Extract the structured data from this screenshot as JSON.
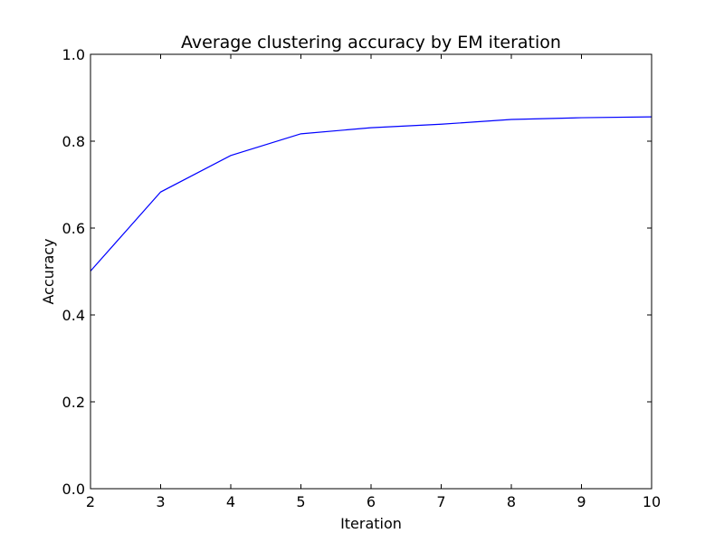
{
  "chart_data": {
    "type": "line",
    "title": "Average clustering accuracy by EM iteration",
    "xlabel": "Iteration",
    "ylabel": "Accuracy",
    "xlim": [
      2,
      10
    ],
    "ylim": [
      0.0,
      1.0
    ],
    "x_ticks": [
      "2",
      "3",
      "4",
      "5",
      "6",
      "7",
      "8",
      "9",
      "10"
    ],
    "y_ticks": [
      "0.0",
      "0.2",
      "0.4",
      "0.6",
      "0.8",
      "1.0"
    ],
    "grid": false,
    "legend": "none",
    "series": [
      {
        "color": "#0000ff",
        "x": [
          2,
          3,
          4,
          5,
          6,
          7,
          8,
          9,
          10
        ],
        "y": [
          0.501,
          0.683,
          0.767,
          0.817,
          0.831,
          0.839,
          0.85,
          0.854,
          0.856
        ]
      }
    ]
  }
}
